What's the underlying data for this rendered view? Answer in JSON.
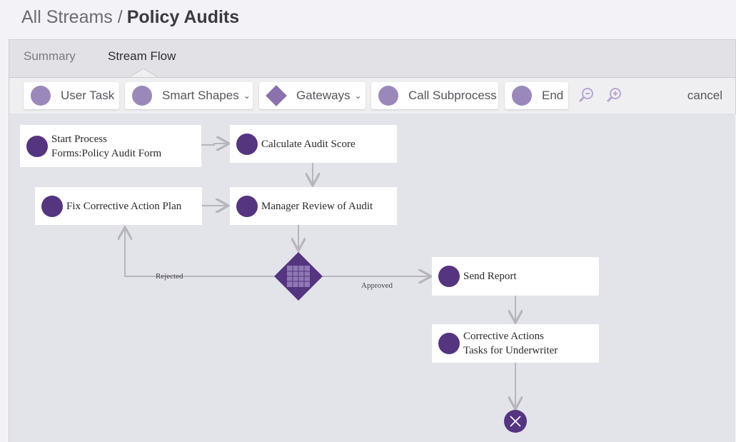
{
  "header": {
    "breadcrumb": "All Streams /",
    "title": "Policy Audits"
  },
  "tabs": [
    "Summary",
    "Stream Flow"
  ],
  "toolbar": {
    "buttons": [
      "User Task",
      "Smart Shapes",
      "Gateways",
      "Call Subprocess",
      "End"
    ],
    "cancel": "cancel"
  },
  "nodes": [
    {
      "lines": [
        "Start Process",
        "Forms:Policy Audit Form"
      ]
    },
    {
      "lines": [
        "Calculate Audit Score"
      ]
    },
    {
      "lines": [
        "Fix Corrective Action Plan"
      ]
    },
    {
      "lines": [
        "Manager Review of Audit"
      ]
    },
    {
      "lines": [
        "Send Report"
      ]
    },
    {
      "lines": [
        "Corrective Actions",
        "Tasks for Underwriter"
      ]
    }
  ],
  "edges": {
    "rejected": "Rejected",
    "approved": "Approved"
  }
}
